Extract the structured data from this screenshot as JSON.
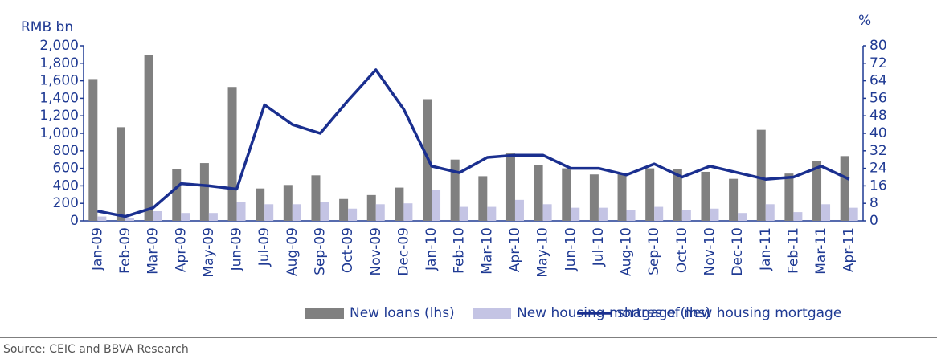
{
  "chart_data": {
    "type": "bar-line",
    "ylabel": "RMB bn",
    "y2label": "%",
    "categories": [
      "Jan-09",
      "Feb-09",
      "Mar-09",
      "Apr-09",
      "May-09",
      "Jun-09",
      "Jul-09",
      "Aug-09",
      "Sep-09",
      "Oct-09",
      "Nov-09",
      "Dec-09",
      "Jan-10",
      "Feb-10",
      "Mar-10",
      "Apr-10",
      "May-10",
      "Jun-10",
      "Jul-10",
      "Aug-10",
      "Sep-10",
      "Oct-10",
      "Nov-10",
      "Dec-10",
      "Jan-11",
      "Feb-11",
      "Mar-11",
      "Apr-11"
    ],
    "series": [
      {
        "name": "New loans (lhs)",
        "type": "bar",
        "color": "#808080",
        "values": [
          1620,
          1070,
          1890,
          590,
          660,
          1530,
          370,
          410,
          520,
          250,
          295,
          380,
          1390,
          700,
          510,
          770,
          640,
          600,
          530,
          540,
          600,
          590,
          560,
          480,
          1040,
          540,
          680,
          740
        ]
      },
      {
        "name": "New housing mortgage (lhs)",
        "type": "bar",
        "color": "#c4c4e4",
        "values": [
          50,
          30,
          110,
          90,
          90,
          220,
          190,
          190,
          220,
          140,
          190,
          200,
          350,
          160,
          160,
          240,
          190,
          150,
          150,
          120,
          160,
          120,
          140,
          90,
          190,
          100,
          190,
          150
        ]
      },
      {
        "name": "shares of new housing mortgage",
        "type": "line",
        "axis": "y2",
        "color": "#1a2f8f",
        "values": [
          4.5,
          2,
          6,
          17,
          16,
          14.5,
          53,
          44,
          40,
          55,
          69,
          51,
          25,
          22,
          29,
          30,
          30,
          24,
          24,
          21,
          26,
          20,
          25,
          22,
          19,
          20,
          25,
          19
        ]
      }
    ],
    "ylim": [
      0,
      2000
    ],
    "yticks": [
      0,
      200,
      400,
      600,
      800,
      {
        "value": 1000,
        "label": "1,000"
      },
      {
        "value": 1200,
        "label": "1,200"
      },
      {
        "value": 1400,
        "label": "1,400"
      },
      {
        "value": 1600,
        "label": "1,600"
      },
      {
        "value": 1800,
        "label": "1,800"
      },
      {
        "value": 2000,
        "label": "2,000"
      }
    ],
    "y2lim": [
      0,
      80
    ],
    "y2ticks": [
      0,
      8,
      16,
      24,
      32,
      40,
      48,
      56,
      64,
      72,
      80
    ],
    "source": "Source: CEIC and BBVA Research"
  }
}
